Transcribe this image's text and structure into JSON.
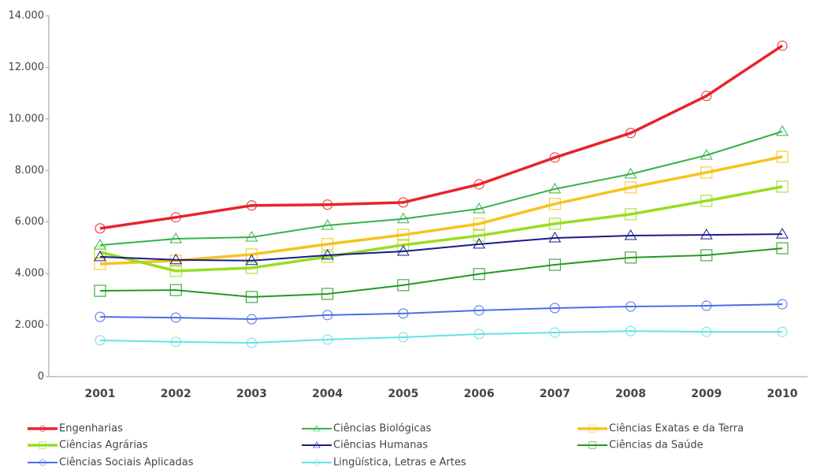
{
  "chart_data": {
    "type": "line",
    "categories": [
      "2001",
      "2002",
      "2003",
      "2004",
      "2005",
      "2006",
      "2007",
      "2008",
      "2009",
      "2010"
    ],
    "ylim": [
      0,
      14000
    ],
    "yticks": [
      0,
      {
        "value": 2000,
        "label": "2.000"
      },
      {
        "value": 4000,
        "label": "4.000"
      },
      {
        "value": 6000,
        "label": "6.000"
      },
      {
        "value": 8000,
        "label": "8.000"
      },
      {
        "value": 10000,
        "label": "10.000"
      },
      {
        "value": 12000,
        "label": "12.000"
      },
      {
        "value": 14000,
        "label": "14.000"
      }
    ],
    "grid": false,
    "legend": "bottom",
    "series": [
      {
        "name": "Engenharias",
        "color": "#e8232a",
        "marker": "circle",
        "values": [
          5750,
          6180,
          6640,
          6670,
          6760,
          7460,
          8500,
          9450,
          10890,
          12840
        ]
      },
      {
        "name": "Ciências Biológicas",
        "color": "#33b24a",
        "marker": "triangle",
        "values": [
          5100,
          5350,
          5410,
          5870,
          6120,
          6510,
          7280,
          7860,
          8590,
          9510
        ]
      },
      {
        "name": "Ciências Exatas e da Terra",
        "color": "#f7c21b",
        "marker": "square",
        "values": [
          4370,
          4500,
          4740,
          5140,
          5500,
          5930,
          6700,
          7340,
          7920,
          8530
        ]
      },
      {
        "name": "Ciências Agrárias",
        "color": "#99dd22",
        "marker": "square",
        "values": [
          4830,
          4100,
          4220,
          4650,
          5110,
          5470,
          5930,
          6300,
          6820,
          7370
        ]
      },
      {
        "name": "Ciências Humanas",
        "color": "#1a1a8c",
        "marker": "triangle",
        "values": [
          4650,
          4530,
          4500,
          4710,
          4860,
          5140,
          5380,
          5470,
          5500,
          5530
        ]
      },
      {
        "name": "Ciências da Saúde",
        "color": "#229922",
        "marker": "square",
        "values": [
          3330,
          3360,
          3090,
          3210,
          3550,
          3980,
          4340,
          4620,
          4710,
          4980
        ]
      },
      {
        "name": "Ciências Sociais Aplicadas",
        "color": "#4a6ee8",
        "marker": "circle",
        "values": [
          2320,
          2290,
          2230,
          2390,
          2450,
          2570,
          2660,
          2720,
          2750,
          2810
        ]
      },
      {
        "name": "Lingüística, Letras e Artes",
        "color": "#66e0e8",
        "marker": "circle",
        "values": [
          1410,
          1350,
          1310,
          1440,
          1530,
          1650,
          1710,
          1770,
          1740,
          1740
        ]
      }
    ]
  }
}
